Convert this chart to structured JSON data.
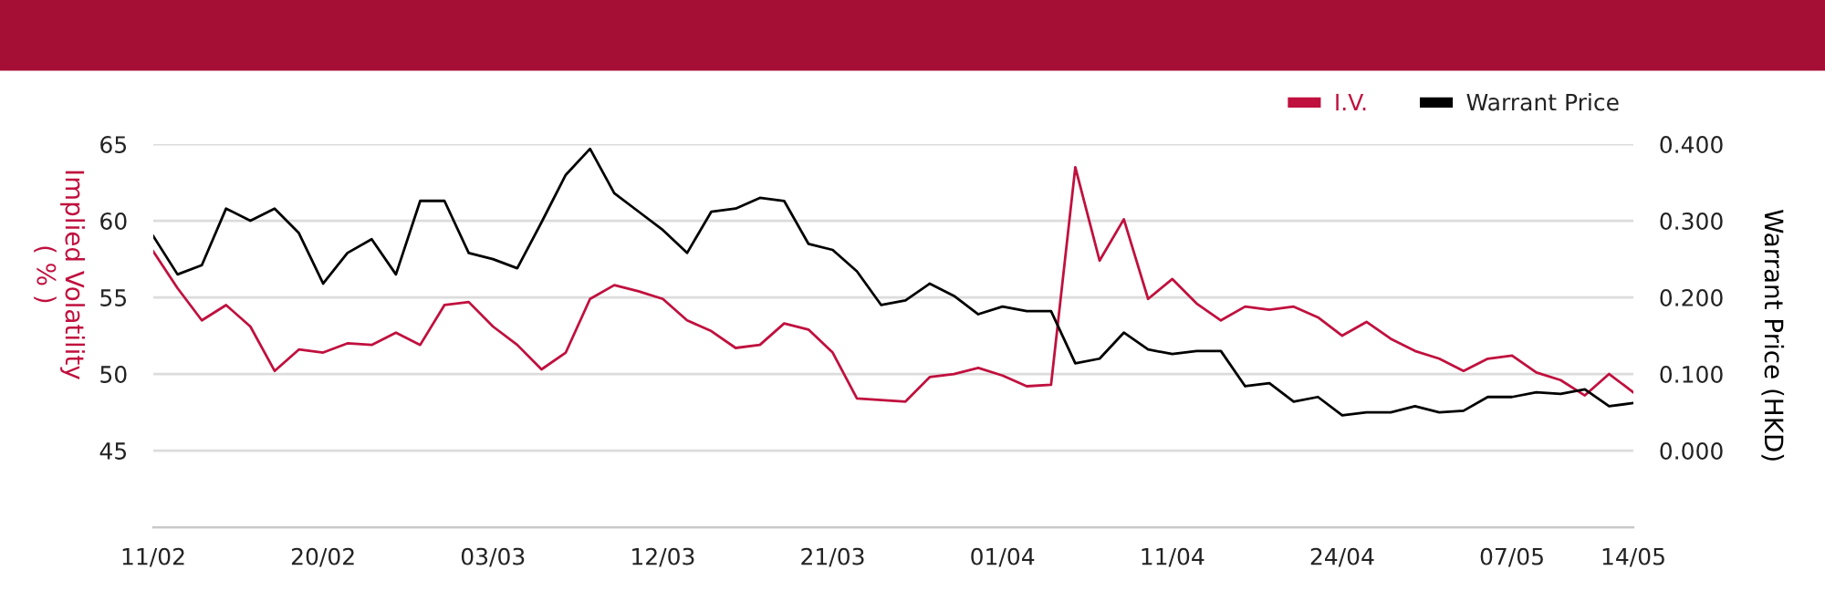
{
  "chart_data": {
    "type": "line",
    "categories": [
      "11/02",
      null,
      null,
      null,
      null,
      null,
      null,
      "20/02",
      null,
      null,
      null,
      null,
      null,
      null,
      "03/03",
      null,
      null,
      null,
      null,
      null,
      null,
      "12/03",
      null,
      null,
      null,
      null,
      null,
      null,
      "21/03",
      null,
      null,
      null,
      null,
      null,
      null,
      "01/04",
      null,
      null,
      null,
      null,
      null,
      null,
      "11/04",
      null,
      null,
      null,
      null,
      null,
      null,
      "24/04",
      null,
      null,
      null,
      null,
      null,
      null,
      "07/05",
      null,
      null,
      null,
      null,
      "14/05"
    ],
    "series": [
      {
        "name": "I.V.",
        "color": "#c0103e",
        "values": [
          58.0,
          55.6,
          53.5,
          54.5,
          53.1,
          50.2,
          51.6,
          51.4,
          52.0,
          51.9,
          52.7,
          51.9,
          54.5,
          54.7,
          53.1,
          51.9,
          50.3,
          51.4,
          54.9,
          55.8,
          55.4,
          54.9,
          53.5,
          52.8,
          51.7,
          51.9,
          53.3,
          52.9,
          51.4,
          48.4,
          48.3,
          48.2,
          49.8,
          50.0,
          50.4,
          49.9,
          49.2,
          49.3,
          63.5,
          57.4,
          60.1,
          54.9,
          56.2,
          54.6,
          53.5,
          54.4,
          54.2,
          54.4,
          53.7,
          52.5,
          53.4,
          52.3,
          51.5,
          51.0,
          50.2,
          51.0,
          51.2,
          50.1,
          49.6,
          48.6,
          50.0,
          48.8
        ]
      },
      {
        "name": "Warrant Price",
        "color": "#000000",
        "axis": "y2",
        "values": [
          0.28,
          0.23,
          0.242,
          0.316,
          0.3,
          0.316,
          0.284,
          0.218,
          0.258,
          0.276,
          0.23,
          0.326,
          0.326,
          0.258,
          0.25,
          0.238,
          0.298,
          0.36,
          0.394,
          0.336,
          0.312,
          0.288,
          0.258,
          0.312,
          0.316,
          0.33,
          0.326,
          0.27,
          0.262,
          0.234,
          0.19,
          0.196,
          0.218,
          0.202,
          0.178,
          0.188,
          0.182,
          0.182,
          0.114,
          0.12,
          0.154,
          0.132,
          0.126,
          0.13,
          0.13,
          0.084,
          0.088,
          0.064,
          0.07,
          0.046,
          0.05,
          0.05,
          0.058,
          0.05,
          0.052,
          0.07,
          0.07,
          0.076,
          0.074,
          0.08,
          0.058,
          0.062
        ]
      }
    ],
    "ylabel": "Implied Volatility\n( % )",
    "y2label": "Warrant Price (HKD)",
    "ylim": [
      40,
      65
    ],
    "yticks": [
      45,
      50,
      55,
      60,
      65
    ],
    "y2lim": [
      -0.1,
      0.4
    ],
    "y2ticks": [
      {
        "value": 0,
        "label": "0.000"
      },
      {
        "value": 0.1,
        "label": "0.100"
      },
      {
        "value": 0.2,
        "label": "0.200"
      },
      {
        "value": 0.3,
        "label": "0.300"
      },
      {
        "value": 0.4,
        "label": "0.400"
      }
    ],
    "grid": "y",
    "legend": "top right",
    "marker": "none",
    "line_style": "solid"
  }
}
